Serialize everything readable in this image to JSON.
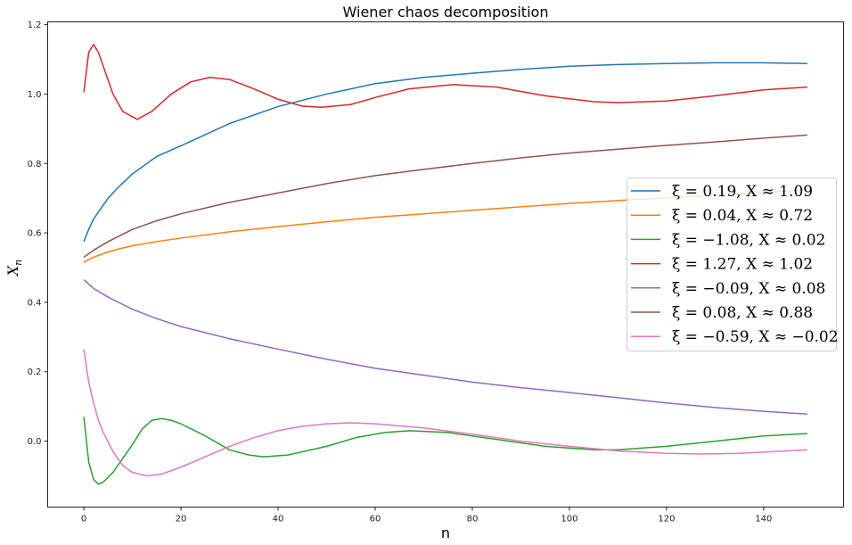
{
  "chart_data": {
    "type": "line",
    "title": "Wiener chaos decomposition",
    "xlabel": "n",
    "ylabel": "X",
    "ylabel_subscript": "n",
    "xlim": [
      -7.45,
      156.45
    ],
    "ylim": [
      -0.19,
      1.208
    ],
    "xticks": [
      0,
      20,
      40,
      60,
      80,
      100,
      120,
      140
    ],
    "xtick_labels": [
      "0",
      "20",
      "40",
      "60",
      "80",
      "100",
      "120",
      "140"
    ],
    "yticks": [
      0.0,
      0.2,
      0.4,
      0.6,
      0.8,
      1.0,
      1.2
    ],
    "ytick_labels": [
      "0.0",
      "0.2",
      "0.4",
      "0.6",
      "0.8",
      "1.0",
      "1.2"
    ],
    "grid": false,
    "legend_position": "right",
    "series": [
      {
        "name": "ξ = 0.19, X ≈ 1.09",
        "color": "#1f77b4",
        "x": [
          0,
          1,
          2,
          3,
          5,
          7,
          10,
          15,
          20,
          30,
          40,
          50,
          60,
          70,
          80,
          90,
          100,
          110,
          120,
          130,
          140,
          149
        ],
        "y": [
          0.575,
          0.61,
          0.64,
          0.66,
          0.7,
          0.73,
          0.77,
          0.82,
          0.851,
          0.915,
          0.964,
          1.0,
          1.03,
          1.048,
          1.06,
          1.071,
          1.08,
          1.085,
          1.088,
          1.09,
          1.09,
          1.088
        ]
      },
      {
        "name": "ξ = 0.04, X ≈ 0.72",
        "color": "#ff7f0e",
        "x": [
          0,
          1,
          2,
          3,
          5,
          7,
          10,
          15,
          20,
          30,
          40,
          50,
          60,
          70,
          80,
          90,
          100,
          110,
          120,
          130,
          140,
          149
        ],
        "y": [
          0.515,
          0.523,
          0.53,
          0.535,
          0.545,
          0.553,
          0.563,
          0.575,
          0.585,
          0.603,
          0.618,
          0.632,
          0.645,
          0.655,
          0.665,
          0.675,
          0.685,
          0.693,
          0.701,
          0.709,
          0.717,
          0.724
        ]
      },
      {
        "name": "ξ = −1.08, X ≈ 0.02",
        "color": "#2ca02c",
        "x": [
          0,
          1,
          2,
          3,
          4,
          6,
          8,
          10,
          12,
          14,
          16,
          18,
          20,
          25,
          30,
          34,
          37,
          42,
          50,
          56,
          62,
          67,
          75,
          85,
          95,
          105,
          110,
          120,
          130,
          140,
          149
        ],
        "y": [
          0.07,
          -0.06,
          -0.11,
          -0.124,
          -0.118,
          -0.09,
          -0.05,
          -0.01,
          0.035,
          0.06,
          0.065,
          0.06,
          0.05,
          0.015,
          -0.025,
          -0.04,
          -0.045,
          -0.04,
          -0.015,
          0.01,
          0.025,
          0.03,
          0.025,
          0.005,
          -0.015,
          -0.025,
          -0.025,
          -0.015,
          0.0,
          0.015,
          0.022
        ]
      },
      {
        "name": "ξ = 1.27, X ≈ 1.02",
        "color": "#d62728",
        "x": [
          0,
          1,
          2,
          3,
          4,
          6,
          8,
          11,
          14,
          18,
          22,
          26,
          30,
          35,
          40,
          45,
          49,
          55,
          60,
          67,
          76,
          85,
          95,
          105,
          110,
          120,
          130,
          140,
          149
        ],
        "y": [
          1.005,
          1.12,
          1.143,
          1.12,
          1.08,
          1.0,
          0.95,
          0.927,
          0.95,
          1.0,
          1.035,
          1.048,
          1.042,
          1.015,
          0.985,
          0.965,
          0.962,
          0.97,
          0.99,
          1.015,
          1.027,
          1.02,
          0.995,
          0.978,
          0.975,
          0.98,
          0.995,
          1.012,
          1.02
        ]
      },
      {
        "name": "ξ = −0.09, X ≈ 0.08",
        "color": "#9467bd",
        "x": [
          0,
          2,
          5,
          10,
          15,
          20,
          30,
          40,
          50,
          60,
          70,
          80,
          90,
          100,
          110,
          120,
          130,
          140,
          149
        ],
        "y": [
          0.465,
          0.44,
          0.415,
          0.38,
          0.353,
          0.33,
          0.295,
          0.265,
          0.236,
          0.21,
          0.19,
          0.17,
          0.154,
          0.14,
          0.125,
          0.11,
          0.097,
          0.086,
          0.078
        ]
      },
      {
        "name": "ξ = 0.08, X ≈ 0.88",
        "color": "#8c564b",
        "x": [
          0,
          2,
          5,
          10,
          15,
          20,
          30,
          40,
          50,
          60,
          70,
          80,
          90,
          100,
          110,
          120,
          130,
          140,
          149
        ],
        "y": [
          0.53,
          0.55,
          0.575,
          0.61,
          0.635,
          0.655,
          0.688,
          0.715,
          0.742,
          0.765,
          0.783,
          0.8,
          0.816,
          0.83,
          0.841,
          0.852,
          0.862,
          0.873,
          0.882
        ]
      },
      {
        "name": "ξ = −0.59, X ≈ −0.02",
        "color": "#e377c2",
        "x": [
          0,
          1,
          2,
          3,
          4,
          6,
          8,
          10,
          13,
          16,
          20,
          25,
          30,
          35,
          40,
          45,
          50,
          55,
          60,
          70,
          80,
          90,
          100,
          110,
          120,
          127,
          135,
          149
        ],
        "y": [
          0.265,
          0.17,
          0.11,
          0.06,
          0.025,
          -0.03,
          -0.07,
          -0.09,
          -0.1,
          -0.095,
          -0.075,
          -0.045,
          -0.015,
          0.01,
          0.03,
          0.043,
          0.05,
          0.053,
          0.05,
          0.038,
          0.02,
          0.0,
          -0.015,
          -0.028,
          -0.035,
          -0.037,
          -0.035,
          -0.025
        ]
      }
    ]
  }
}
